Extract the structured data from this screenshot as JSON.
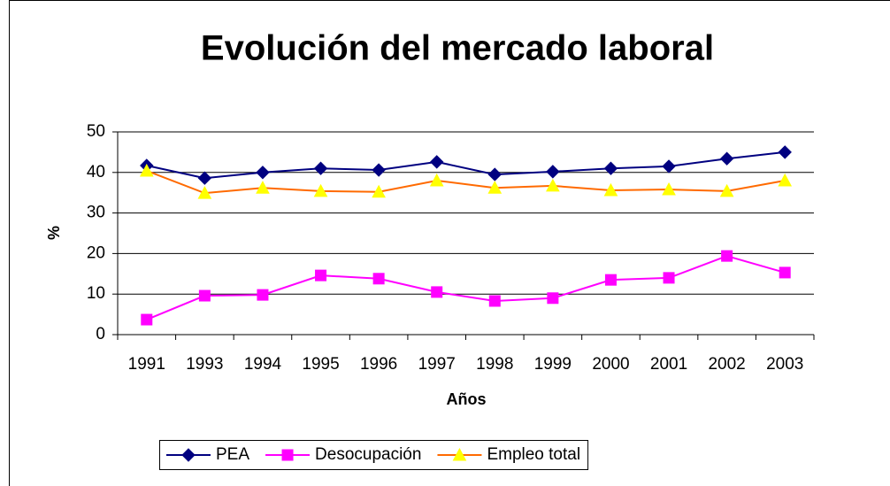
{
  "chart_data": {
    "type": "line",
    "title": "Evolución del mercado laboral",
    "xlabel": "Años",
    "ylabel": "%",
    "categories": [
      "1991",
      "1993",
      "1994",
      "1995",
      "1996",
      "1997",
      "1998",
      "1999",
      "2000",
      "2001",
      "2002",
      "2003"
    ],
    "series": [
      {
        "name": "PEA",
        "color": "#000080",
        "marker": "diamond",
        "marker_color": "#000080",
        "values": [
          41.7,
          38.6,
          40.0,
          41.0,
          40.6,
          42.6,
          39.5,
          40.2,
          41.0,
          41.5,
          43.4,
          45.0
        ]
      },
      {
        "name": "Desocupación",
        "color": "#ff00ff",
        "marker": "square",
        "marker_color": "#ff00ff",
        "values": [
          3.7,
          9.6,
          9.8,
          14.6,
          13.8,
          10.5,
          8.3,
          9.0,
          13.5,
          14.0,
          19.4,
          15.3
        ]
      },
      {
        "name": "Empleo total",
        "color": "#ff6a00",
        "marker": "triangle",
        "marker_color": "#ffff00",
        "values": [
          40.4,
          34.9,
          36.2,
          35.4,
          35.2,
          38.0,
          36.2,
          36.7,
          35.6,
          35.8,
          35.4,
          38.0
        ]
      }
    ],
    "ylim": [
      0,
      50
    ],
    "yticks": [
      0,
      10,
      20,
      30,
      40,
      50
    ],
    "grid": true,
    "legend": "bottom"
  }
}
